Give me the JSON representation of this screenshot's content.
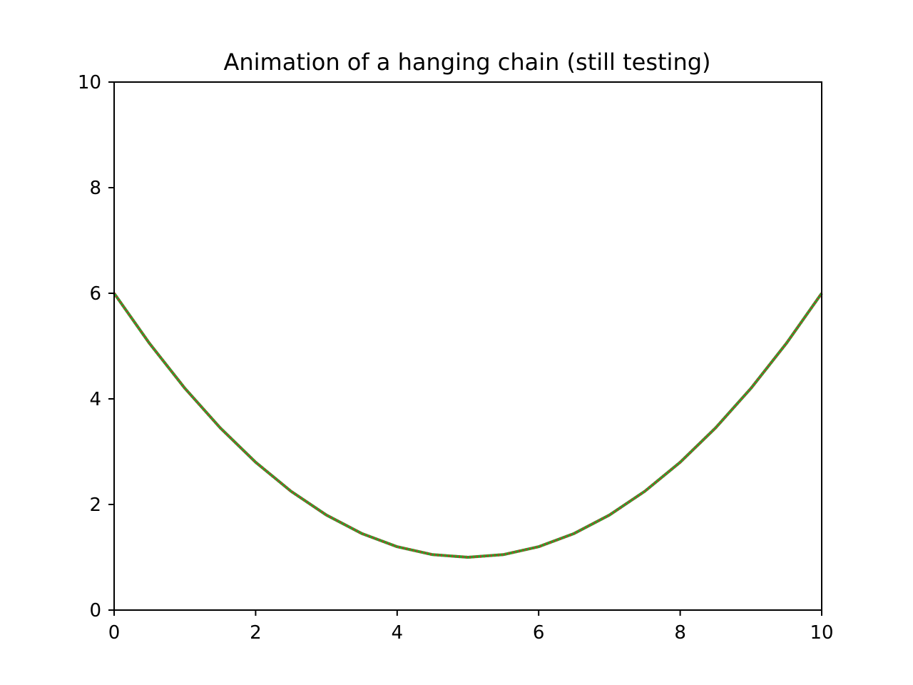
{
  "chart_data": {
    "type": "line",
    "title": "Animation of a hanging chain (still testing)",
    "xlabel": "",
    "ylabel": "",
    "xlim": [
      0,
      10
    ],
    "ylim": [
      0,
      10
    ],
    "x_ticks": [
      0,
      2,
      4,
      6,
      8,
      10
    ],
    "y_ticks": [
      0,
      2,
      4,
      6,
      8,
      10
    ],
    "grid": false,
    "legend": "none",
    "series": [
      {
        "color_primary": "#2ca02c",
        "color_secondary": "#d62728",
        "style": "dotted-overlay",
        "x": [
          0,
          0.5,
          1,
          1.5,
          2,
          2.5,
          3,
          3.5,
          4,
          4.5,
          5,
          5.5,
          6,
          6.5,
          7,
          7.5,
          8,
          8.5,
          9,
          9.5,
          10
        ],
        "y": [
          6.0,
          5.05,
          4.2,
          3.45,
          2.8,
          2.25,
          1.8,
          1.45,
          1.2,
          1.05,
          1.0,
          1.05,
          1.2,
          1.45,
          1.8,
          2.25,
          2.8,
          3.45,
          4.2,
          5.05,
          6.0
        ]
      }
    ]
  }
}
